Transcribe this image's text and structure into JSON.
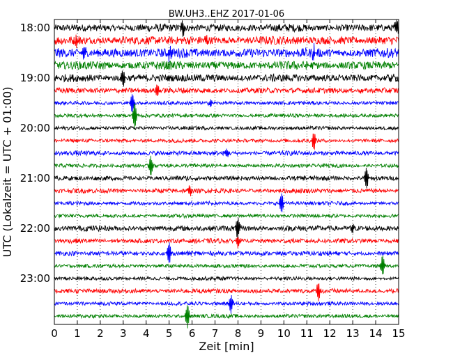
{
  "chart_data": {
    "type": "line",
    "title": "BW.UH3..EHZ 2017-01-06",
    "xlabel": "Zeit  [min]",
    "ylabel": "UTC (Lokalzeit = UTC + 01:00)",
    "xlim": [
      0,
      15
    ],
    "x_ticks": [
      "0",
      "1",
      "2",
      "3",
      "4",
      "5",
      "6",
      "7",
      "8",
      "9",
      "10",
      "11",
      "12",
      "13",
      "14",
      "15"
    ],
    "y_tick_labels": [
      "18:00",
      "19:00",
      "20:00",
      "21:00",
      "22:00",
      "23:00"
    ],
    "grid": "vertical dotted at each minute",
    "series_colors": [
      "#000000",
      "#ff0000",
      "#0000ff",
      "#008000"
    ],
    "traces": [
      {
        "start": "18:00",
        "color": "#000000",
        "amplitude": 0.4,
        "spikes": [
          [
            5.6,
            0.9
          ],
          [
            14.9,
            0.9
          ]
        ]
      },
      {
        "start": "18:15",
        "color": "#ff0000",
        "amplitude": 0.45,
        "spikes": [
          [
            1.0,
            0.6
          ],
          [
            6.6,
            0.6
          ]
        ]
      },
      {
        "start": "18:30",
        "color": "#0000ff",
        "amplitude": 0.5,
        "spikes": [
          [
            1.3,
            1.0
          ],
          [
            5.0,
            0.9
          ],
          [
            11.3,
            0.9
          ]
        ]
      },
      {
        "start": "18:45",
        "color": "#008000",
        "amplitude": 0.45,
        "spikes": []
      },
      {
        "start": "19:00",
        "color": "#000000",
        "amplitude": 0.4,
        "spikes": [
          [
            3.0,
            0.9
          ],
          [
            14.7,
            0.6
          ]
        ]
      },
      {
        "start": "19:15",
        "color": "#ff0000",
        "amplitude": 0.3,
        "spikes": [
          [
            4.5,
            0.7
          ],
          [
            13.4,
            0.4
          ]
        ]
      },
      {
        "start": "19:30",
        "color": "#0000ff",
        "amplitude": 0.2,
        "spikes": [
          [
            3.4,
            1.3
          ],
          [
            6.8,
            0.5
          ]
        ]
      },
      {
        "start": "19:45",
        "color": "#008000",
        "amplitude": 0.2,
        "spikes": [
          [
            3.5,
            1.6
          ]
        ]
      },
      {
        "start": "20:00",
        "color": "#000000",
        "amplitude": 0.2,
        "spikes": []
      },
      {
        "start": "20:15",
        "color": "#ff0000",
        "amplitude": 0.2,
        "spikes": [
          [
            11.3,
            1.2
          ]
        ]
      },
      {
        "start": "20:30",
        "color": "#0000ff",
        "amplitude": 0.25,
        "spikes": [
          [
            7.5,
            0.6
          ]
        ]
      },
      {
        "start": "20:45",
        "color": "#008000",
        "amplitude": 0.2,
        "spikes": [
          [
            4.2,
            1.2
          ]
        ]
      },
      {
        "start": "21:00",
        "color": "#000000",
        "amplitude": 0.25,
        "spikes": [
          [
            13.6,
            1.3
          ]
        ]
      },
      {
        "start": "21:15",
        "color": "#ff0000",
        "amplitude": 0.25,
        "spikes": [
          [
            5.9,
            0.6
          ]
        ]
      },
      {
        "start": "21:30",
        "color": "#0000ff",
        "amplitude": 0.2,
        "spikes": [
          [
            9.9,
            1.2
          ]
        ]
      },
      {
        "start": "21:45",
        "color": "#008000",
        "amplitude": 0.2,
        "spikes": []
      },
      {
        "start": "22:00",
        "color": "#000000",
        "amplitude": 0.3,
        "spikes": [
          [
            8.0,
            1.3
          ],
          [
            13.0,
            0.6
          ]
        ]
      },
      {
        "start": "22:15",
        "color": "#ff0000",
        "amplitude": 0.25,
        "spikes": [
          [
            8.0,
            0.7
          ]
        ]
      },
      {
        "start": "22:30",
        "color": "#0000ff",
        "amplitude": 0.25,
        "spikes": [
          [
            5.0,
            1.3
          ]
        ]
      },
      {
        "start": "22:45",
        "color": "#008000",
        "amplitude": 0.2,
        "spikes": [
          [
            14.3,
            1.2
          ]
        ]
      },
      {
        "start": "23:00",
        "color": "#000000",
        "amplitude": 0.2,
        "spikes": []
      },
      {
        "start": "23:15",
        "color": "#ff0000",
        "amplitude": 0.25,
        "spikes": [
          [
            11.5,
            1.2
          ]
        ]
      },
      {
        "start": "23:30",
        "color": "#0000ff",
        "amplitude": 0.2,
        "spikes": [
          [
            7.7,
            1.1
          ]
        ]
      },
      {
        "start": "23:45",
        "color": "#008000",
        "amplitude": 0.2,
        "spikes": [
          [
            5.8,
            1.4
          ]
        ]
      }
    ]
  }
}
